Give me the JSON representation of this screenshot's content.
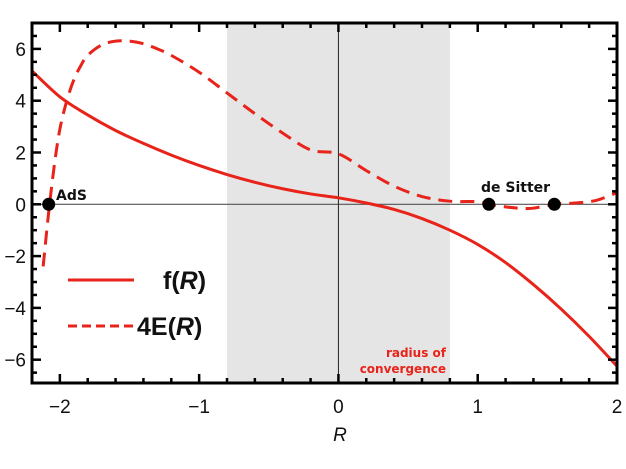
{
  "chart_data": {
    "type": "line",
    "title": "",
    "xlabel": "R",
    "ylabel": "",
    "xlim": [
      -2.2,
      2.0
    ],
    "ylim": [
      -6.9,
      7.0
    ],
    "xticks": [
      -2,
      -1,
      0,
      1,
      2
    ],
    "xtick_labels": [
      "−2",
      "−1",
      "0",
      "1",
      "2"
    ],
    "yticks": [
      -6,
      -4,
      -2,
      0,
      2,
      4,
      6
    ],
    "ytick_labels": [
      "−6",
      "−4",
      "−2",
      "0",
      "2",
      "4",
      "6"
    ],
    "grid": false,
    "shaded_region": {
      "x": [
        -0.8,
        0.8
      ],
      "color": "#e5e5e5",
      "label": [
        "radius of",
        "convergence"
      ]
    },
    "series": [
      {
        "name": "f(R)",
        "style": "solid",
        "color": "#e8231a",
        "x": [
          -2.2,
          -2.0,
          -1.8,
          -1.6,
          -1.4,
          -1.2,
          -1.0,
          -0.8,
          -0.6,
          -0.4,
          -0.2,
          0.0,
          0.2,
          0.4,
          0.6,
          0.8,
          1.0,
          1.2,
          1.4,
          1.6,
          1.8,
          2.0
        ],
        "y": [
          5.15,
          4.15,
          3.45,
          2.85,
          2.35,
          1.9,
          1.5,
          1.15,
          0.85,
          0.6,
          0.4,
          0.25,
          0.05,
          -0.2,
          -0.55,
          -1.0,
          -1.55,
          -2.25,
          -3.1,
          -4.05,
          -5.1,
          -6.25
        ]
      },
      {
        "name": "4E(R)",
        "style": "dashed",
        "color": "#e8231a",
        "x": [
          -2.12,
          -2.08,
          -2.04,
          -2.0,
          -1.95,
          -1.9,
          -1.85,
          -1.8,
          -1.7,
          -1.6,
          -1.5,
          -1.4,
          -1.3,
          -1.2,
          -1.0,
          -0.8,
          -0.6,
          -0.4,
          -0.2,
          0.0,
          0.2,
          0.4,
          0.6,
          0.8,
          1.0,
          1.08,
          1.2,
          1.3,
          1.4,
          1.55,
          1.7,
          1.85,
          2.0
        ],
        "y": [
          -2.4,
          -0.3,
          1.5,
          2.9,
          4.0,
          4.8,
          5.35,
          5.75,
          6.15,
          6.3,
          6.3,
          6.2,
          6.0,
          5.75,
          5.1,
          4.3,
          3.5,
          2.75,
          2.1,
          1.95,
          1.3,
          0.7,
          0.3,
          0.12,
          0.1,
          0.0,
          -0.1,
          -0.15,
          -0.15,
          0.0,
          0.05,
          0.15,
          0.45
        ]
      }
    ],
    "points": [
      {
        "x": -2.08,
        "y": 0,
        "label": "AdS"
      },
      {
        "x": 1.08,
        "y": 0,
        "label": "de Sitter"
      },
      {
        "x": 1.55,
        "y": 0,
        "label": ""
      }
    ],
    "legend": {
      "position": "lower-left",
      "entries": [
        "f(R)",
        "4E(R)"
      ]
    }
  },
  "labels": {
    "ads": "AdS",
    "desitter": "de Sitter",
    "conv1": "radius of",
    "conv2": "convergence",
    "xlabel": "R",
    "legend_f_pre": "f(",
    "legend_f_var": "R",
    "legend_f_post": ")",
    "legend_e_pre": "4E(",
    "legend_e_var": "R",
    "legend_e_post": ")"
  }
}
